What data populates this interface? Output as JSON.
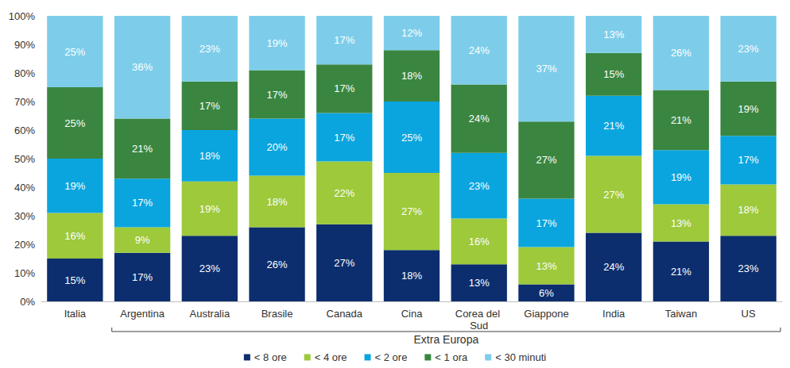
{
  "chart_data": {
    "type": "bar",
    "stacked": true,
    "data_labels": true,
    "grid": false,
    "legend": "bottom",
    "categories": [
      "Italia",
      "Argentina",
      "Australia",
      "Brasile",
      "Canada",
      "Cina",
      "Corea del Sud",
      "Giappone",
      "India",
      "Taiwan",
      "US"
    ],
    "ylim": [
      0,
      100
    ],
    "yticks": [
      {
        "value": 0,
        "label": "0%"
      },
      {
        "value": 10,
        "label": "10%"
      },
      {
        "value": 20,
        "label": "20%"
      },
      {
        "value": 30,
        "label": "30%"
      },
      {
        "value": 40,
        "label": "40%"
      },
      {
        "value": 50,
        "label": "50%"
      },
      {
        "value": 60,
        "label": "60%"
      },
      {
        "value": 70,
        "label": "70%"
      },
      {
        "value": 80,
        "label": "80%"
      },
      {
        "value": 90,
        "label": "90%"
      },
      {
        "value": 100,
        "label": "100%"
      }
    ],
    "annotations": [
      {
        "text": "Extra Europa",
        "from": "Argentina",
        "to": "US"
      }
    ],
    "series": [
      {
        "name": "< 8 ore",
        "color": "#0c2e6e",
        "values": [
          15,
          17,
          23,
          26,
          27,
          18,
          13,
          6,
          24,
          21,
          23
        ],
        "value_labels": [
          "15%",
          "17%",
          "23%",
          "26%",
          "27%",
          "18%",
          "13%",
          "6%",
          "24%",
          "21%",
          "23%"
        ]
      },
      {
        "name": "< 4 ore",
        "color": "#9dc93b",
        "values": [
          16,
          9,
          19,
          18,
          22,
          27,
          16,
          13,
          27,
          13,
          18
        ],
        "value_labels": [
          "16%",
          "9%",
          "19%",
          "18%",
          "22%",
          "27%",
          "16%",
          "13%",
          "27%",
          "13%",
          "18%"
        ]
      },
      {
        "name": "< 2 ore",
        "color": "#0aa5de",
        "values": [
          19,
          17,
          18,
          20,
          17,
          25,
          23,
          17,
          21,
          19,
          17
        ],
        "value_labels": [
          "19%",
          "17%",
          "18%",
          "20%",
          "17%",
          "25%",
          "23%",
          "17%",
          "21%",
          "19%",
          "17%"
        ]
      },
      {
        "name": "< 1 ora",
        "color": "#3a8640",
        "values": [
          25,
          21,
          17,
          17,
          17,
          18,
          24,
          27,
          15,
          21,
          19
        ],
        "value_labels": [
          "25%",
          "21%",
          "17%",
          "17%",
          "17%",
          "18%",
          "24%",
          "27%",
          "15%",
          "21%",
          "19%"
        ]
      },
      {
        "name": "< 30 minuti",
        "color": "#7dcdea",
        "values": [
          25,
          36,
          23,
          19,
          17,
          12,
          24,
          37,
          13,
          26,
          23
        ],
        "value_labels": [
          "25%",
          "36%",
          "23%",
          "19%",
          "17%",
          "12%",
          "24%",
          "37%",
          "13%",
          "26%",
          "23%"
        ]
      }
    ]
  }
}
